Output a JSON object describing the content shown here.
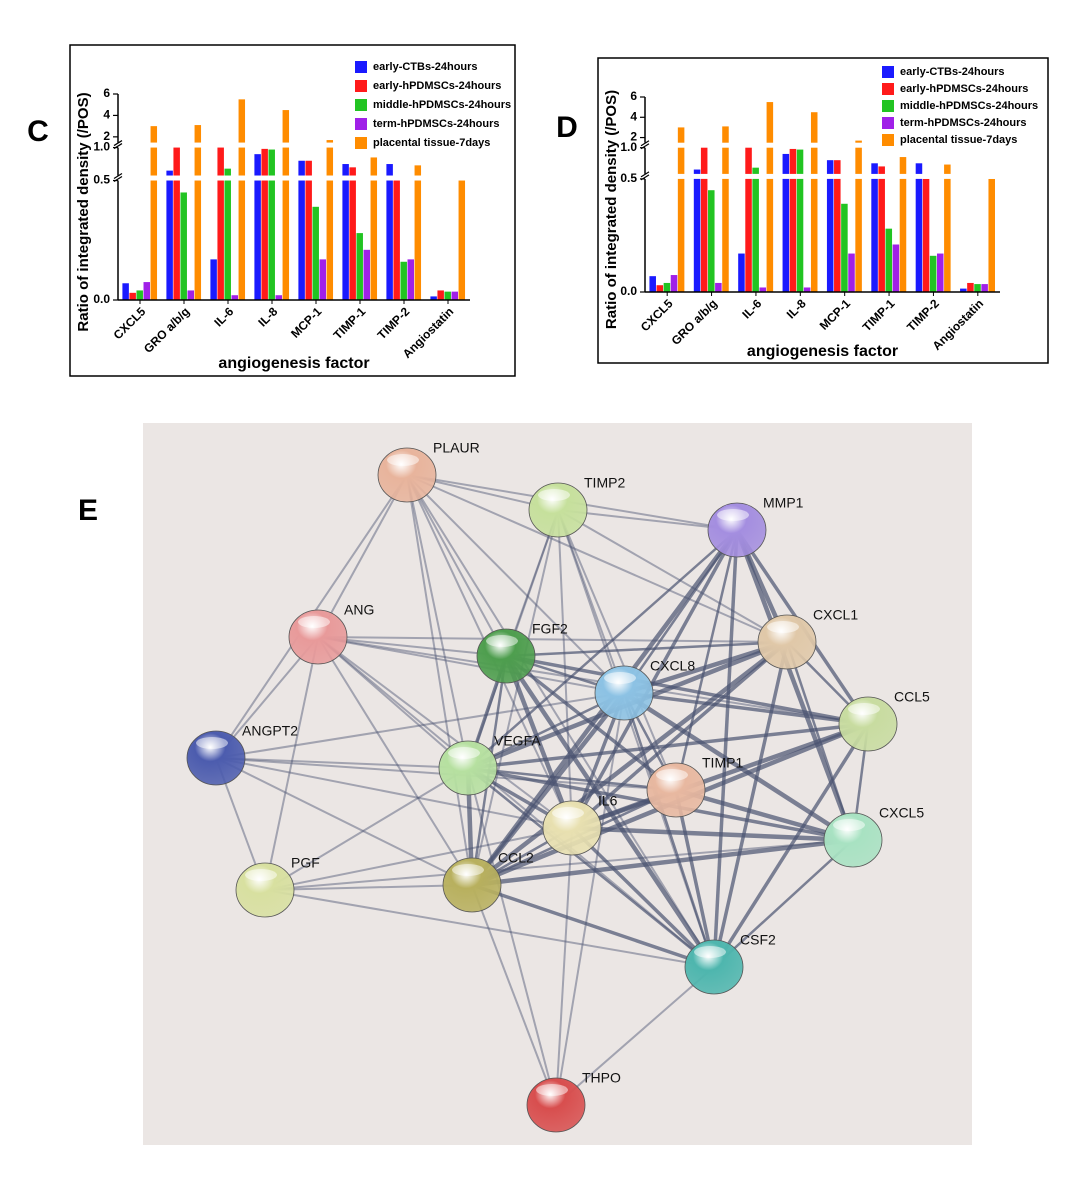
{
  "panel_labels": [
    "C",
    "D",
    "E"
  ],
  "chart_data": [
    {
      "type": "bar",
      "ylabel": "Ratio of integrated density (/POS)",
      "xlabel": "angiogenesis factor",
      "categories": [
        "CXCL5",
        "GRO a/b/g",
        "IL-6",
        "IL-8",
        "MCP-1",
        "TIMP-1",
        "TIMP-2",
        "Angiostatin"
      ],
      "series": [
        {
          "name": "early-CTBs-24hours",
          "color": "#1a1aff",
          "values": [
            0.07,
            0.65,
            0.17,
            0.9,
            0.8,
            0.75,
            0.75,
            0.015
          ]
        },
        {
          "name": "early-hPDMSCs-24hours",
          "color": "#ff1a1a",
          "values": [
            0.03,
            1.3,
            1.2,
            0.98,
            0.8,
            0.7,
            0.5,
            0.04
          ]
        },
        {
          "name": "middle-hPDMSCs-24hours",
          "color": "#22c422",
          "values": [
            0.04,
            0.45,
            0.68,
            0.97,
            0.39,
            0.28,
            0.16,
            0.035
          ]
        },
        {
          "name": "term-hPDMSCs-24hours",
          "color": "#a020e8",
          "values": [
            0.075,
            0.04,
            0.02,
            0.02,
            0.17,
            0.21,
            0.17,
            0.035
          ]
        },
        {
          "name": "placental tissue-7days",
          "color": "#ff8c00",
          "values": [
            3.0,
            3.1,
            5.5,
            4.5,
            1.7,
            0.85,
            0.73,
            0.5
          ]
        }
      ],
      "ylim": [
        0,
        6
      ],
      "ybreaks": [
        0.5,
        1.0
      ],
      "yticks": [
        {
          "value": 0,
          "label": "0.0"
        },
        {
          "value": 0.5,
          "label": "0.5"
        },
        {
          "value": 1,
          "label": "1.0"
        },
        2,
        4,
        6
      ]
    },
    {
      "type": "bar",
      "ylabel": "Ratio of integrated density (/POS)",
      "xlabel": "angiogenesis factor",
      "categories": [
        "CXCL5",
        "GRO a/b/g",
        "IL-6",
        "IL-8",
        "MCP-1",
        "TIMP-1",
        "TIMP-2",
        "Angiostatin"
      ],
      "series": [
        {
          "name": "early-CTBs-24hours",
          "color": "#1a1aff",
          "values": [
            0.07,
            0.65,
            0.17,
            0.9,
            0.8,
            0.75,
            0.75,
            0.015
          ]
        },
        {
          "name": "early-hPDMSCs-24hours",
          "color": "#ff1a1a",
          "values": [
            0.03,
            1.3,
            1.2,
            0.98,
            0.8,
            0.7,
            0.5,
            0.04
          ]
        },
        {
          "name": "middle-hPDMSCs-24hours",
          "color": "#22c422",
          "values": [
            0.04,
            0.45,
            0.68,
            0.97,
            0.39,
            0.28,
            0.16,
            0.035
          ]
        },
        {
          "name": "term-hPDMSCs-24hours",
          "color": "#a020e8",
          "values": [
            0.075,
            0.04,
            0.02,
            0.02,
            0.17,
            0.21,
            0.17,
            0.035
          ]
        },
        {
          "name": "placental tissue-7days",
          "color": "#ff8c00",
          "values": [
            3.0,
            3.1,
            5.5,
            4.5,
            1.7,
            0.85,
            0.73,
            0.5
          ]
        }
      ],
      "ylim": [
        0,
        6
      ],
      "ybreaks": [
        0.5,
        1.0
      ],
      "yticks": [
        {
          "value": 0,
          "label": "0.0"
        },
        {
          "value": 0.5,
          "label": "0.5"
        },
        {
          "value": 1,
          "label": "1.0"
        },
        2,
        4,
        6
      ]
    }
  ],
  "network": {
    "nodes": [
      {
        "label": "PLAUR",
        "color": "#e8b49c"
      },
      {
        "label": "TIMP2",
        "color": "#c6e09c"
      },
      {
        "label": "MMP1",
        "color": "#a48ee0"
      },
      {
        "label": "ANG",
        "color": "#e89a9a"
      },
      {
        "label": "FGF2",
        "color": "#4e9e4e"
      },
      {
        "label": "CXCL1",
        "color": "#e0c8a8"
      },
      {
        "label": "CXCL8",
        "color": "#8cc2e4"
      },
      {
        "label": "CCL5",
        "color": "#c8dca0"
      },
      {
        "label": "ANGPT2",
        "color": "#4c5cae"
      },
      {
        "label": "VEGFA",
        "color": "#b6e0a0"
      },
      {
        "label": "TIMP1",
        "color": "#e8b8a0"
      },
      {
        "label": "IL6",
        "color": "#e8e0b0"
      },
      {
        "label": "CXCL5",
        "color": "#a8e2c2"
      },
      {
        "label": "PGF",
        "color": "#d8e0a0"
      },
      {
        "label": "CCL2",
        "color": "#b8b05e"
      },
      {
        "label": "CSF2",
        "color": "#4eb6ae"
      },
      {
        "label": "THPO",
        "color": "#d84e4e"
      }
    ]
  }
}
